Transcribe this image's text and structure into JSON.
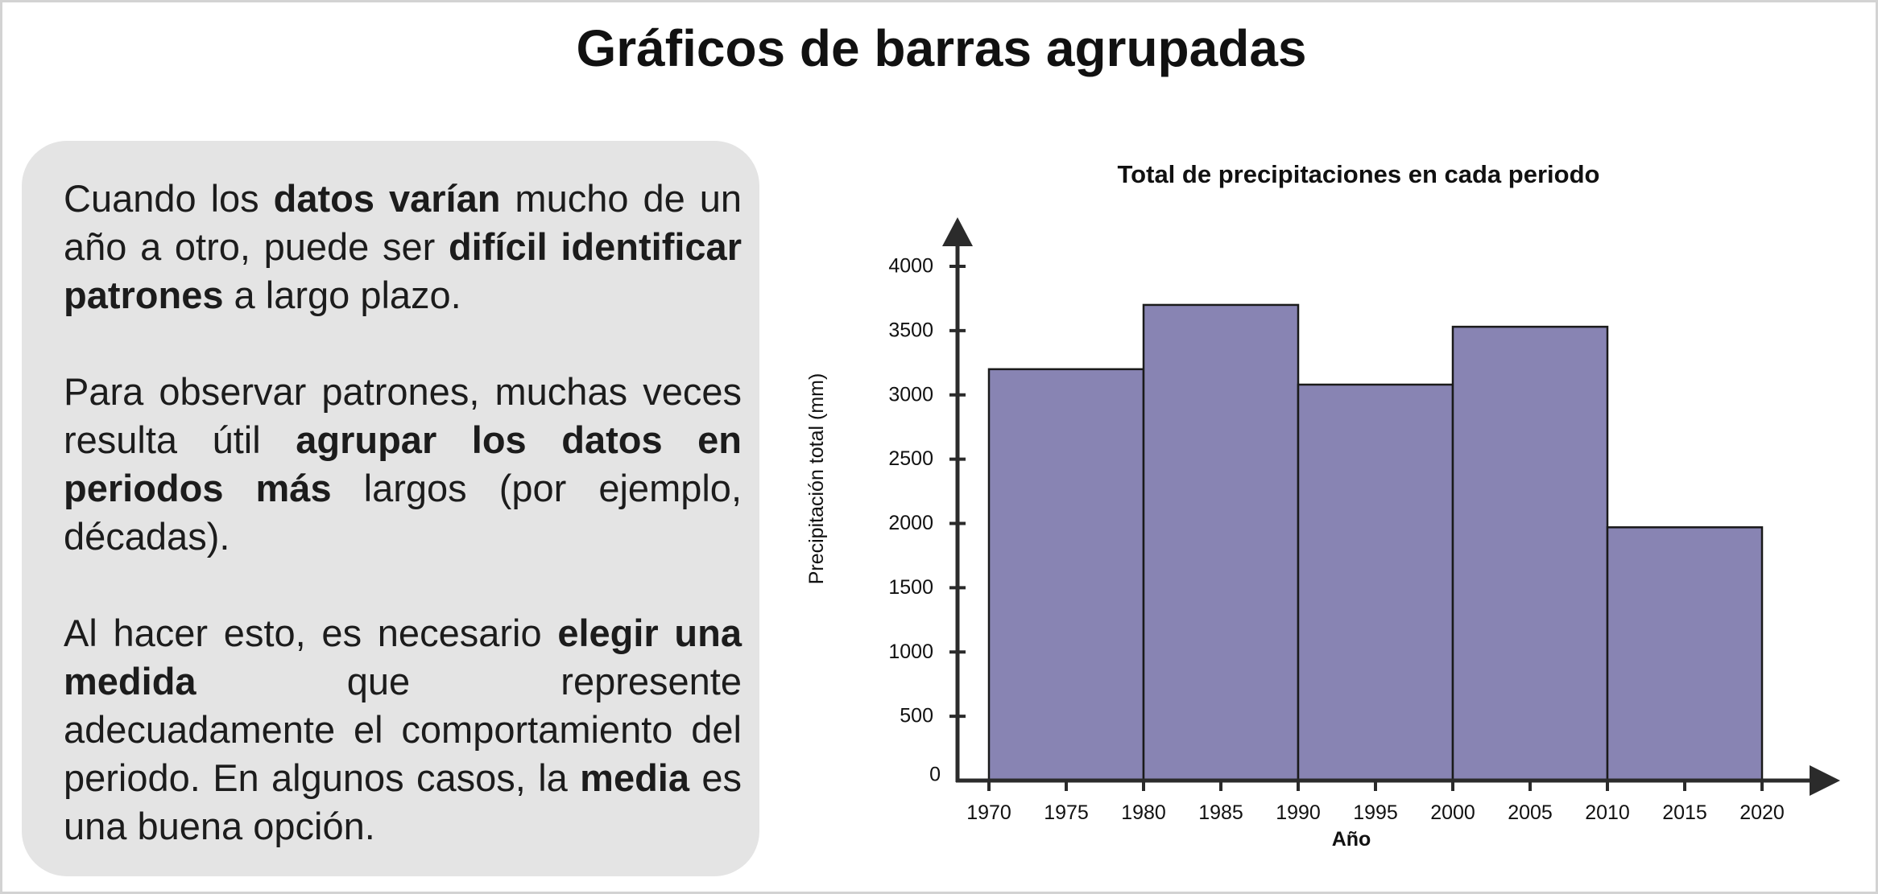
{
  "page": {
    "title": "Gráficos de barras agrupadas"
  },
  "text_card": {
    "paragraphs": [
      [
        {
          "t": "Cuando los ",
          "b": false
        },
        {
          "t": "datos varían",
          "b": true
        },
        {
          "t": " mucho de un año a otro, puede ser ",
          "b": false
        },
        {
          "t": "difícil identificar patrones",
          "b": true
        },
        {
          "t": " a largo plazo.",
          "b": false
        }
      ],
      [
        {
          "t": "Para observar patrones, muchas veces resulta útil ",
          "b": false
        },
        {
          "t": "agrupar los datos en periodos más",
          "b": true
        },
        {
          "t": " largos (por ejemplo, décadas).",
          "b": false
        }
      ],
      [
        {
          "t": "Al hacer esto, es necesario ",
          "b": false
        },
        {
          "t": "elegir una medida",
          "b": true
        },
        {
          "t": " que represente adecuadamente el comportamiento del periodo. En algunos casos, la ",
          "b": false
        },
        {
          "t": "media",
          "b": true
        },
        {
          "t": " es una buena opción.",
          "b": false
        }
      ]
    ]
  },
  "chart_data": {
    "type": "bar",
    "title": "Total de precipitaciones en cada periodo",
    "xlabel": "Año",
    "ylabel": "Precipitación total (mm)",
    "bins": [
      {
        "start": 1970,
        "end": 1980,
        "value": 3200
      },
      {
        "start": 1980,
        "end": 1990,
        "value": 3700
      },
      {
        "start": 1990,
        "end": 2000,
        "value": 3080
      },
      {
        "start": 2000,
        "end": 2010,
        "value": 3530
      },
      {
        "start": 2010,
        "end": 2020,
        "value": 1970
      }
    ],
    "x_ticks": [
      1970,
      1975,
      1980,
      1985,
      1990,
      1995,
      2000,
      2005,
      2010,
      2015,
      2020
    ],
    "y_ticks": [
      0,
      500,
      1000,
      1500,
      2000,
      2500,
      3000,
      3500,
      4000
    ],
    "xlim": [
      1970,
      2020
    ],
    "ylim": [
      0,
      4000
    ],
    "bar_color": "#8884b3",
    "bar_edge_color": "#1a1a1a",
    "axis_color": "#2b2b2b",
    "grid": false
  }
}
